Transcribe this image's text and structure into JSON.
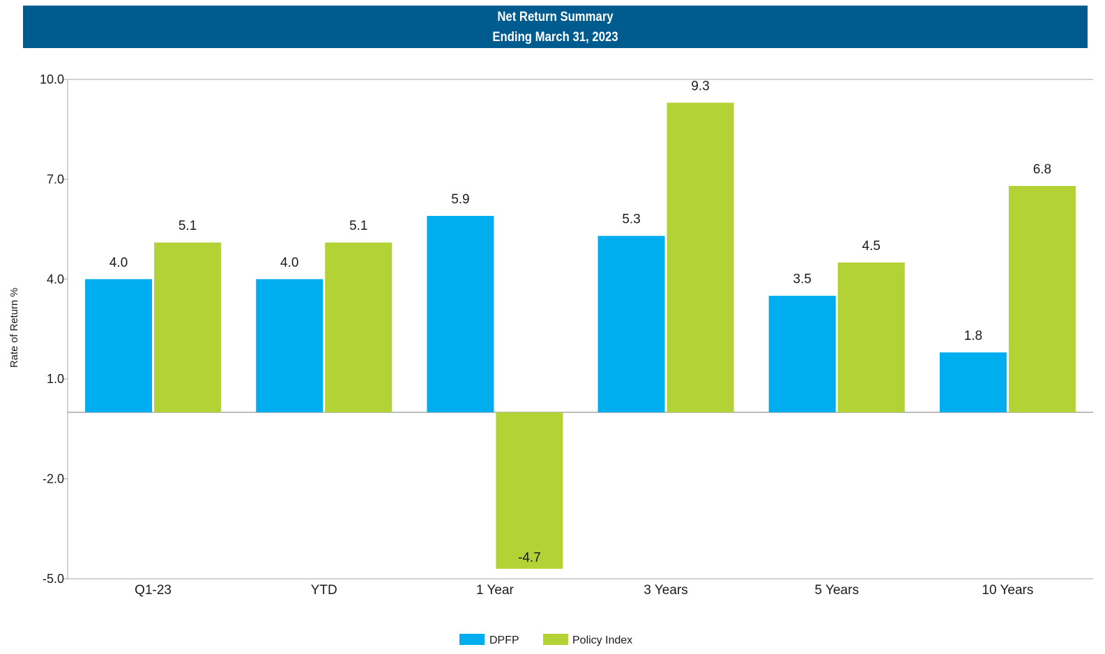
{
  "chart_data": {
    "type": "bar",
    "title": "Net Return Summary",
    "subtitle": "Ending March 31, 2023",
    "ylabel": "Rate of Return %",
    "xlabel": "",
    "ylim": [
      -5,
      10
    ],
    "yticks": [
      "10.0",
      "7.0",
      "4.0",
      "1.0",
      "-2.0",
      "-5.0"
    ],
    "ytick_values": [
      10,
      7,
      4,
      1,
      -2,
      -5
    ],
    "categories": [
      "Q1-23",
      "YTD",
      "1 Year",
      "3 Years",
      "5 Years",
      "10 Years"
    ],
    "series": [
      {
        "name": "DPFP",
        "color": "#00aeef",
        "values": [
          4.0,
          4.0,
          5.9,
          5.3,
          3.5,
          1.8
        ],
        "labels": [
          "4.0",
          "4.0",
          "5.9",
          "5.3",
          "3.5",
          "1.8"
        ]
      },
      {
        "name": "Policy Index",
        "color": "#b2d235",
        "values": [
          5.1,
          5.1,
          -4.7,
          9.3,
          4.5,
          6.8
        ],
        "labels": [
          "5.1",
          "5.1",
          "-4.7",
          "9.3",
          "4.5",
          "6.8"
        ]
      }
    ],
    "grid": false,
    "legend_position": "bottom-center"
  },
  "colors": {
    "banner": "#005b8e",
    "axis": "#a6a6a6",
    "text": "#1a1a1a"
  }
}
